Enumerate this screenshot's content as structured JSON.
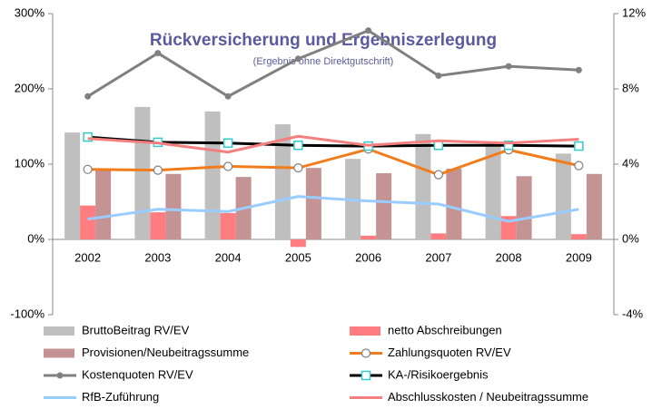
{
  "chart_data": {
    "type": "bar",
    "title": "Rückversicherung und Ergebniszerlegung",
    "subtitle": "(Ergebnis ohne Direktgutschrift)",
    "categories": [
      "2002",
      "2003",
      "2004",
      "2005",
      "2006",
      "2007",
      "2008",
      "2009"
    ],
    "ylim": [
      -100,
      300
    ],
    "yticks": [
      {
        "value": -100,
        "label": "-100%"
      },
      {
        "value": 0,
        "label": "0%"
      },
      {
        "value": 100,
        "label": "100%"
      },
      {
        "value": 200,
        "label": "200%"
      },
      {
        "value": 300,
        "label": "300%"
      }
    ],
    "y2lim": [
      -4,
      12
    ],
    "y2ticks": [
      {
        "value": -4,
        "label": "-4%"
      },
      {
        "value": 0,
        "label": "0%"
      },
      {
        "value": 4,
        "label": "4%"
      },
      {
        "value": 8,
        "label": "8%"
      },
      {
        "value": 12,
        "label": "12%"
      }
    ],
    "grid": false,
    "series": [
      {
        "name": "BruttoBeitrag RV/EV",
        "type": "bar",
        "color": "#bfbfbf",
        "values": [
          142,
          176,
          170,
          153,
          107,
          140,
          128,
          114
        ]
      },
      {
        "name": "netto Abschreibungen",
        "type": "bar",
        "color": "#ff7c80",
        "values": [
          45,
          36,
          35,
          -10,
          5,
          8,
          31,
          7
        ]
      },
      {
        "name": "Provisionen/Neubeitragssumme",
        "type": "bar",
        "color": "#c49494",
        "values": [
          93,
          87,
          83,
          95,
          88,
          94,
          84,
          87
        ]
      },
      {
        "name": "Zahlungsquoten RV/EV",
        "type": "line",
        "marker": "circle",
        "color": "#f07c1c",
        "values": [
          93,
          92,
          97,
          95,
          120,
          86,
          119,
          98
        ]
      },
      {
        "name": "Kostenquoten RV/EV",
        "type": "line",
        "marker": "dot",
        "axis": "y2",
        "color": "#808080",
        "values": [
          7.6,
          9.9,
          7.6,
          9.6,
          11.1,
          8.7,
          9.2,
          9.0
        ]
      },
      {
        "name": "KA-/Risikoergebnis",
        "type": "line",
        "marker": "square",
        "color": "#000000",
        "values": [
          136,
          129,
          128,
          125,
          124,
          125,
          125,
          124
        ]
      },
      {
        "name": "RfB-Zuführung",
        "type": "line",
        "color": "#99ccff",
        "values": [
          27,
          40,
          37,
          57,
          51,
          47,
          24,
          40
        ]
      },
      {
        "name": "Abschlusskosten / Neubeitragssumme",
        "type": "line",
        "color": "#f47f7f",
        "values": [
          134,
          128,
          116,
          137,
          125,
          131,
          128,
          133
        ]
      }
    ]
  }
}
